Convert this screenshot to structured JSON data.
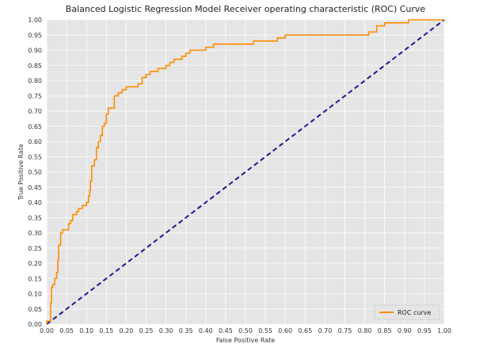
{
  "chart_data": {
    "type": "line",
    "title": "Balanced Logistic Regression Model Receiver operating characteristic (ROC) Curve",
    "xlabel": "False Positive Rate",
    "ylabel": "True Positive Rate",
    "xlim": [
      0,
      1
    ],
    "ylim": [
      0,
      1
    ],
    "xticks": [
      "0.00",
      "0.05",
      "0.10",
      "0.15",
      "0.20",
      "0.25",
      "0.30",
      "0.35",
      "0.40",
      "0.45",
      "0.50",
      "0.55",
      "0.60",
      "0.65",
      "0.70",
      "0.75",
      "0.80",
      "0.85",
      "0.90",
      "0.95",
      "1.00"
    ],
    "yticks": [
      "0.00",
      "0.05",
      "0.10",
      "0.15",
      "0.20",
      "0.25",
      "0.30",
      "0.35",
      "0.40",
      "0.45",
      "0.50",
      "0.55",
      "0.60",
      "0.65",
      "0.70",
      "0.75",
      "0.80",
      "0.85",
      "0.90",
      "0.95",
      "1.00"
    ],
    "grid": true,
    "legend_position": "lower right",
    "series": [
      {
        "name": "ROC curve",
        "color": "#ff8c00",
        "line_style": "solid",
        "points": [
          [
            0.0,
            0.0
          ],
          [
            0.0,
            0.01
          ],
          [
            0.01,
            0.01
          ],
          [
            0.01,
            0.07
          ],
          [
            0.012,
            0.07
          ],
          [
            0.012,
            0.12
          ],
          [
            0.015,
            0.12
          ],
          [
            0.015,
            0.13
          ],
          [
            0.02,
            0.13
          ],
          [
            0.02,
            0.15
          ],
          [
            0.025,
            0.15
          ],
          [
            0.025,
            0.17
          ],
          [
            0.028,
            0.17
          ],
          [
            0.028,
            0.21
          ],
          [
            0.03,
            0.21
          ],
          [
            0.03,
            0.26
          ],
          [
            0.035,
            0.26
          ],
          [
            0.035,
            0.3
          ],
          [
            0.04,
            0.3
          ],
          [
            0.04,
            0.31
          ],
          [
            0.055,
            0.31
          ],
          [
            0.055,
            0.33
          ],
          [
            0.06,
            0.33
          ],
          [
            0.06,
            0.34
          ],
          [
            0.065,
            0.34
          ],
          [
            0.065,
            0.36
          ],
          [
            0.075,
            0.36
          ],
          [
            0.075,
            0.37
          ],
          [
            0.08,
            0.37
          ],
          [
            0.08,
            0.38
          ],
          [
            0.09,
            0.38
          ],
          [
            0.09,
            0.39
          ],
          [
            0.1,
            0.39
          ],
          [
            0.1,
            0.4
          ],
          [
            0.105,
            0.4
          ],
          [
            0.105,
            0.42
          ],
          [
            0.108,
            0.42
          ],
          [
            0.108,
            0.44
          ],
          [
            0.11,
            0.44
          ],
          [
            0.11,
            0.47
          ],
          [
            0.113,
            0.47
          ],
          [
            0.113,
            0.52
          ],
          [
            0.12,
            0.52
          ],
          [
            0.12,
            0.54
          ],
          [
            0.125,
            0.54
          ],
          [
            0.125,
            0.58
          ],
          [
            0.13,
            0.58
          ],
          [
            0.13,
            0.6
          ],
          [
            0.135,
            0.6
          ],
          [
            0.135,
            0.62
          ],
          [
            0.14,
            0.62
          ],
          [
            0.14,
            0.65
          ],
          [
            0.145,
            0.65
          ],
          [
            0.145,
            0.66
          ],
          [
            0.15,
            0.66
          ],
          [
            0.15,
            0.69
          ],
          [
            0.155,
            0.69
          ],
          [
            0.155,
            0.71
          ],
          [
            0.17,
            0.71
          ],
          [
            0.17,
            0.75
          ],
          [
            0.18,
            0.75
          ],
          [
            0.18,
            0.76
          ],
          [
            0.19,
            0.76
          ],
          [
            0.19,
            0.77
          ],
          [
            0.2,
            0.77
          ],
          [
            0.2,
            0.78
          ],
          [
            0.23,
            0.78
          ],
          [
            0.23,
            0.79
          ],
          [
            0.24,
            0.79
          ],
          [
            0.24,
            0.81
          ],
          [
            0.25,
            0.81
          ],
          [
            0.25,
            0.82
          ],
          [
            0.26,
            0.82
          ],
          [
            0.26,
            0.83
          ],
          [
            0.28,
            0.83
          ],
          [
            0.28,
            0.84
          ],
          [
            0.3,
            0.84
          ],
          [
            0.3,
            0.85
          ],
          [
            0.31,
            0.85
          ],
          [
            0.31,
            0.86
          ],
          [
            0.32,
            0.86
          ],
          [
            0.32,
            0.87
          ],
          [
            0.34,
            0.87
          ],
          [
            0.34,
            0.88
          ],
          [
            0.35,
            0.88
          ],
          [
            0.35,
            0.89
          ],
          [
            0.36,
            0.89
          ],
          [
            0.36,
            0.9
          ],
          [
            0.4,
            0.9
          ],
          [
            0.4,
            0.91
          ],
          [
            0.42,
            0.91
          ],
          [
            0.42,
            0.92
          ],
          [
            0.47,
            0.92
          ],
          [
            0.47,
            0.92
          ],
          [
            0.52,
            0.92
          ],
          [
            0.52,
            0.93
          ],
          [
            0.58,
            0.93
          ],
          [
            0.58,
            0.94
          ],
          [
            0.6,
            0.94
          ],
          [
            0.6,
            0.95
          ],
          [
            0.62,
            0.95
          ],
          [
            0.62,
            0.95
          ],
          [
            0.81,
            0.95
          ],
          [
            0.81,
            0.96
          ],
          [
            0.83,
            0.96
          ],
          [
            0.83,
            0.98
          ],
          [
            0.85,
            0.98
          ],
          [
            0.85,
            0.99
          ],
          [
            0.91,
            0.99
          ],
          [
            0.91,
            1.0
          ],
          [
            0.93,
            1.0
          ],
          [
            1.0,
            1.0
          ]
        ]
      },
      {
        "name": "",
        "color": "#1a1a8c",
        "line_style": "dashed",
        "points": [
          [
            0,
            0
          ],
          [
            1,
            1
          ]
        ]
      }
    ]
  }
}
